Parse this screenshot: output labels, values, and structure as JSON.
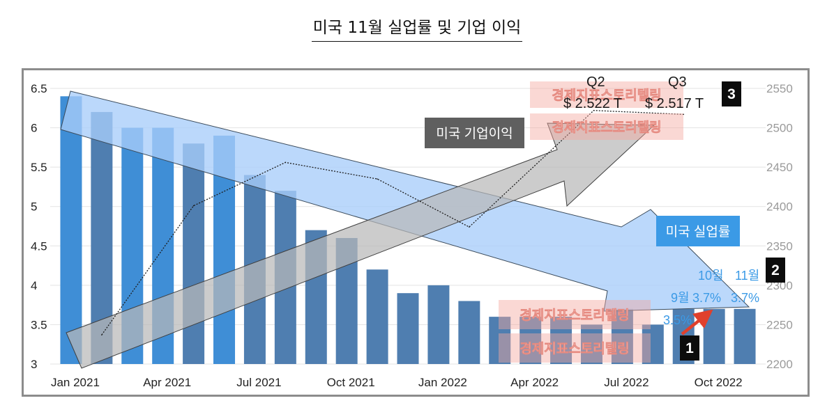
{
  "page": {
    "title": "미국 11월 실업률 및 기업 이익"
  },
  "chart_data": {
    "type": "bar",
    "title": "미국 11월 실업률 및 기업 이익",
    "categories": [
      "Jan 2021",
      "Feb 2021",
      "Mar 2021",
      "Apr 2021",
      "May 2021",
      "Jun 2021",
      "Jul 2021",
      "Aug 2021",
      "Sep 2021",
      "Oct 2021",
      "Nov 2021",
      "Dec 2021",
      "Jan 2022",
      "Feb 2022",
      "Mar 2022",
      "Apr 2022",
      "May 2022",
      "Jun 2022",
      "Jul 2022",
      "Aug 2022",
      "Sep 2022",
      "Oct 2022",
      "Nov 2022"
    ],
    "series": [
      {
        "name": "미국 실업률",
        "axis": "left",
        "values": [
          6.4,
          6.2,
          6.0,
          6.0,
          5.8,
          5.9,
          5.4,
          5.2,
          4.7,
          4.6,
          4.2,
          3.9,
          4.0,
          3.8,
          3.6,
          3.6,
          3.6,
          3.5,
          3.7,
          3.5,
          3.7,
          3.7,
          3.7
        ]
      },
      {
        "name": "미국 기업이익",
        "axis": "right",
        "style": "dotted line",
        "points": [
          {
            "x": "Q1 2021",
            "y": 2237
          },
          {
            "x": "Q2 2021",
            "y": 2401
          },
          {
            "x": "Q3 2021",
            "y": 2456
          },
          {
            "x": "Q4 2021",
            "y": 2435
          },
          {
            "x": "Q1 2022",
            "y": 2374
          },
          {
            "x": "Q2 2022",
            "y": 2522
          },
          {
            "x": "Q3 2022",
            "y": 2517
          }
        ]
      }
    ],
    "x_tick_labels": [
      "Jan 2021",
      "Apr 2021",
      "Jul 2021",
      "Oct 2021",
      "Jan 2022",
      "Apr 2022",
      "Jul 2022",
      "Oct 2022"
    ],
    "y_left": {
      "range": [
        3,
        6.5
      ],
      "ticks": [
        "3",
        "3.5",
        "4",
        "4.5",
        "5",
        "5.5",
        "6",
        "6.5"
      ]
    },
    "y_right": {
      "range": [
        2200,
        2550
      ],
      "ticks": [
        "2200",
        "2250",
        "2300",
        "2350",
        "2400",
        "2450",
        "2500",
        "2550"
      ]
    },
    "annotations": {
      "profit_label": "미국 기업이익",
      "unemployment_label": "미국 실업률",
      "q2_label": "Q2",
      "q3_label": "Q3",
      "q2_value": "$ 2.522 T",
      "q3_value": "$ 2.517 T",
      "aug_value": "3.5%",
      "sep_label": "9월",
      "sep_value": "3.7%",
      "oct_label": "10월",
      "nov_label": "11월",
      "nov_value": "3.7%",
      "badge_1": "1",
      "badge_2": "2",
      "badge_3": "3"
    },
    "watermark": "경제지표스토리텔링",
    "colors": {
      "bar": "#4f7eb0",
      "bar_highlight": "#3f8ed6",
      "blue_arrow": "#a8cdfa",
      "gray_arrow": "#b9b9b9",
      "blue_label": "#3b9ae6",
      "gray_label": "#5f5f5f",
      "red_arrow": "#e0402c"
    }
  }
}
